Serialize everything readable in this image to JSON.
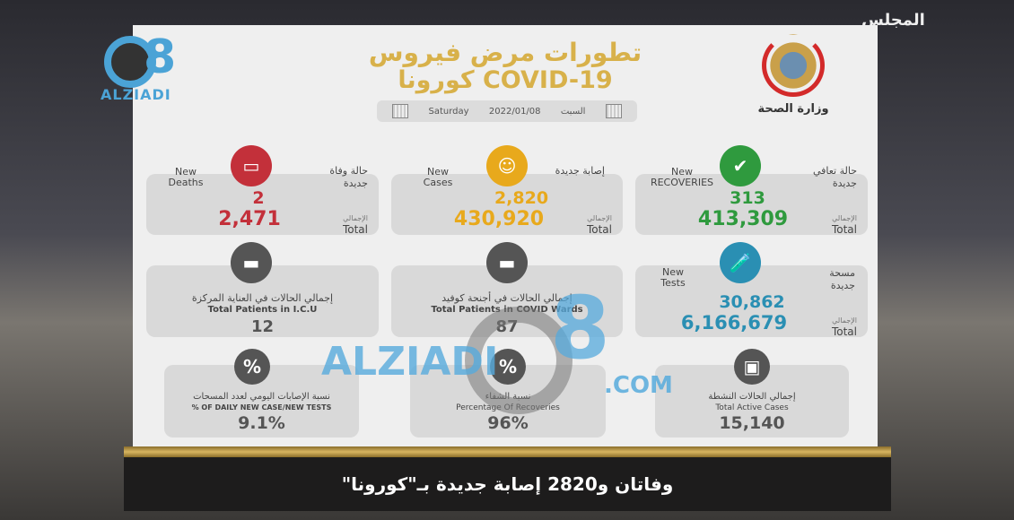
{
  "channel_logo": "المجلس",
  "watermark": {
    "name": "ALZIADI",
    "number": "8",
    "domain": ".COM"
  },
  "header": {
    "title_ar": "تطورات مرض فيروس",
    "title_line2": "كورونا COVID-19",
    "date_day_en": "Saturday",
    "date": "2022/01/08",
    "date_day_ar": "السبت",
    "ministry": "وزارة الصحة"
  },
  "total_en": "Total",
  "total_ar": "الإجمالي",
  "colors": {
    "deaths": "#c3303a",
    "cases": "#e8a91c",
    "recoveries": "#2f9a3e",
    "tests": "#2a8fb3",
    "neutral": "#555555",
    "title": "#d8b14a"
  },
  "cards": {
    "deaths": {
      "en": "New Deaths",
      "ar": "حالة وفاة جديدة",
      "new": "2",
      "total": "2,471",
      "icon": "tombstone-icon"
    },
    "cases": {
      "en": "New Cases",
      "ar": "إصابة جديدة",
      "new": "2,820",
      "total": "430,920",
      "icon": "person-virus-icon"
    },
    "recoveries": {
      "en": "New RECOVERIES",
      "ar": "حالة تعافي جديدة",
      "new": "313",
      "total": "413,309",
      "icon": "person-check-icon"
    },
    "icu": {
      "ar": "إجمالي الحالات في العناية المركزة",
      "en": "Total Patients in I.C.U",
      "value": "12",
      "icon": "hospital-bed-icon"
    },
    "wards": {
      "ar": "إجمالي الحالات في أجنحة كوفيد",
      "en": "Total Patients in COVID Wards",
      "value": "87",
      "icon": "hospital-bed-icon"
    },
    "tests": {
      "en": "New Tests",
      "ar": "مسحة جديدة",
      "new": "30,862",
      "total": "6,166,679",
      "icon": "test-tube-icon"
    },
    "positivity": {
      "ar": "نسبة الإصابات اليومي لعدد المسحات",
      "en": "% OF DAILY NEW CASE/NEW TESTS",
      "value": "9.1%",
      "icon": "percent-icon"
    },
    "recovery_rate": {
      "ar": "نسبة الشفاء",
      "en": "Percentage Of Recoveries",
      "value": "96%",
      "icon": "percent-icon"
    },
    "active": {
      "ar": "إجمالي الحالات النشطة",
      "en": "Total Active Cases",
      "value": "15,140",
      "icon": "briefcase-icon"
    }
  },
  "caption": "وفاتان و2820 إصابة جديدة بـ\"كورونا\""
}
